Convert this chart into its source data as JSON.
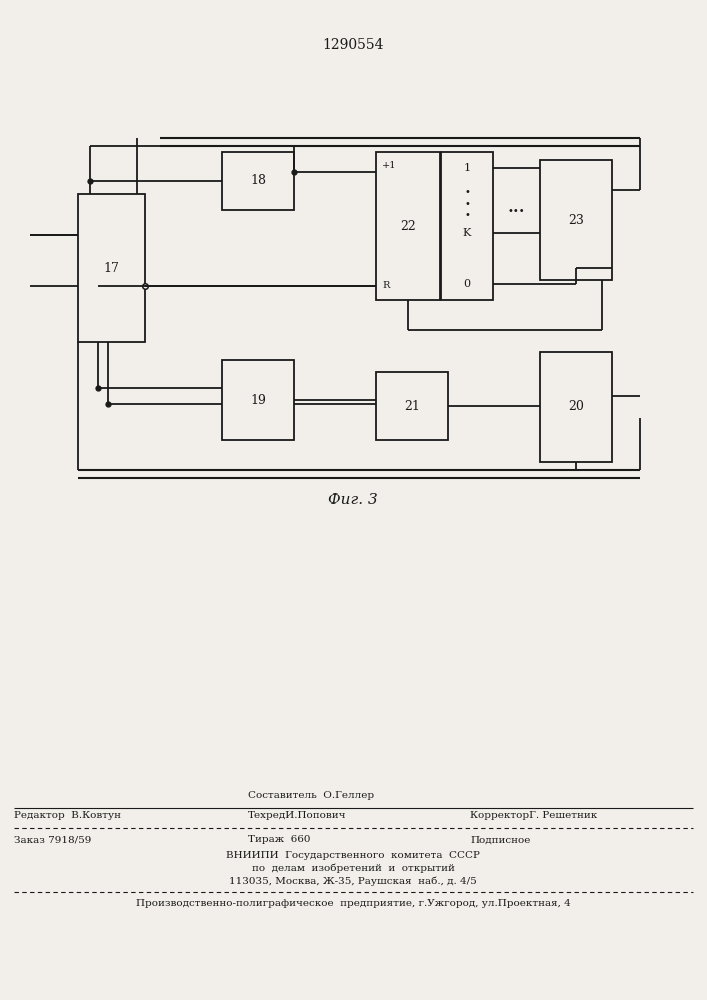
{
  "title": "1290554",
  "fig_label": "Фиг. 3",
  "background_color": "#f2efea",
  "line_color": "#1a1a1a",
  "footer": {
    "sestavitel": "Составитель  О.Геллер",
    "redaktor": "Редактор  В.Ковтун",
    "tehred": "ТехредИ.Попович",
    "korrektor": "КорректорГ. Решетник",
    "zakaz": "Заказ 7918/59",
    "tirazh": "Тираж  660",
    "podpisnoe": "Подписное",
    "vniip1": "ВНИИПИ  Государственного  комитета  СССР",
    "vniip2": "по  делам  изобретений  и  открытий",
    "vniip3": "113035, Москва, Ж-35, Раушская  наб., д. 4/5",
    "proizv": "Производственно-полиграфическое  предприятие, г.Ужгород, ул.Проектная, 4"
  }
}
